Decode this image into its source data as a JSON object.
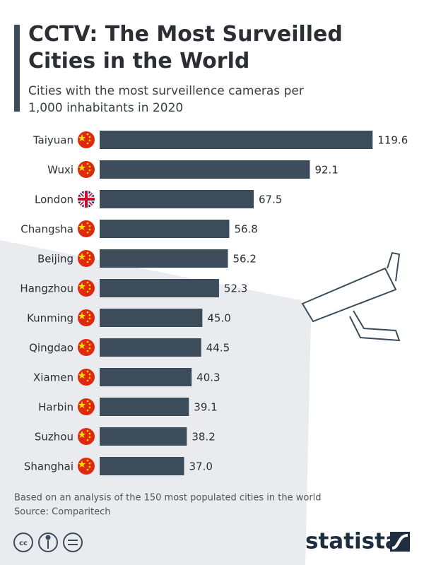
{
  "chart_data": {
    "type": "bar",
    "orientation": "horizontal",
    "title": "CCTV: The Most Surveilled Cities in the World",
    "subtitle": "Cities with the most surveillence cameras per 1,000 inhabitants in 2020",
    "categories": [
      "Taiyuan",
      "Wuxi",
      "London",
      "Changsha",
      "Beijing",
      "Hangzhou",
      "Kunming",
      "Qingdao",
      "Xiamen",
      "Harbin",
      "Suzhou",
      "Shanghai"
    ],
    "values": [
      119.6,
      92.1,
      67.5,
      56.8,
      56.2,
      52.3,
      45,
      44.5,
      40.3,
      39.1,
      38.2,
      37
    ],
    "value_labels": [
      "119.6",
      "92.1",
      "67.5",
      "56.8",
      "56.2",
      "52.3",
      "45.0",
      "44.5",
      "40.3",
      "39.1",
      "38.2",
      "37.0"
    ],
    "color": "#3c4c5b",
    "note": "Based on an analysis of the 150 most populated cities in the world",
    "source": "Source: Comparitech",
    "brand": "statista"
  }
}
